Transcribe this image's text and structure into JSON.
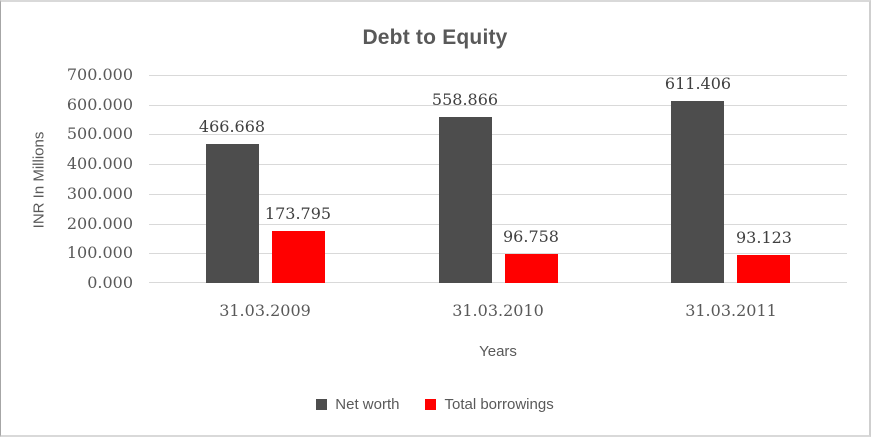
{
  "chart_data": {
    "type": "bar",
    "title": "Debt to Equity",
    "ylabel": "INR In Millions",
    "xlabel": "Years",
    "categories": [
      "31.03.2009",
      "31.03.2010",
      "31.03.2011"
    ],
    "series": [
      {
        "name": "Net worth",
        "color": "#4D4D4D",
        "values": [
          466.668,
          558.866,
          611.406
        ],
        "data_labels": [
          "466.668",
          "558.866",
          "611.406"
        ]
      },
      {
        "name": "Total borrowings",
        "color": "#FF0000",
        "values": [
          173.795,
          96.758,
          93.123
        ],
        "data_labels": [
          "173.795",
          "96.758",
          "93.123"
        ]
      }
    ],
    "ylim": [
      0,
      700
    ],
    "ytick_step": 100,
    "ytick_labels": [
      "700.000",
      "600.000",
      "500.000",
      "400.000",
      "300.000",
      "200.000",
      "100.000",
      "0.000"
    ],
    "grid": true,
    "legend_position": "bottom",
    "colors": {
      "grid": "#D9D9D9",
      "axis_text": "#595959",
      "data_label_text": "#404040",
      "title_text": "#595959"
    }
  }
}
